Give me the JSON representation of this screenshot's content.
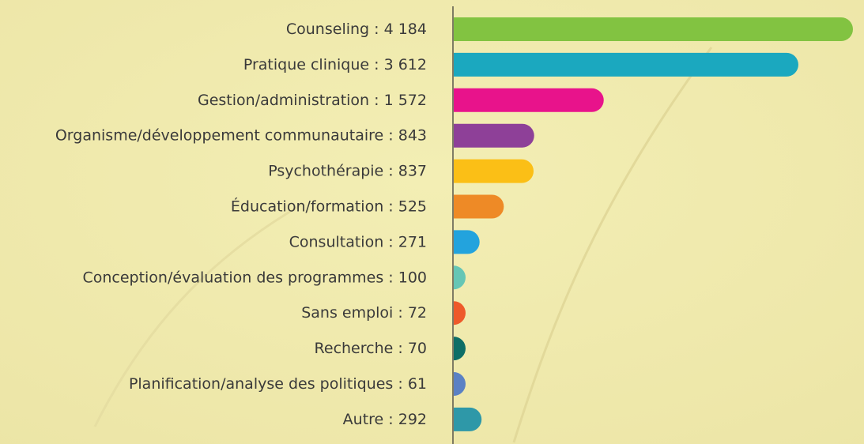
{
  "chart_data": {
    "type": "bar",
    "orientation": "horizontal",
    "separator": " : ",
    "categories": [
      "Counseling",
      "Pratique clinique",
      "Gestion/administration",
      "Organisme/développement communautaire",
      "Psychothérapie",
      "Éducation/formation",
      "Consultation",
      "Conception/évaluation des programmes",
      "Sans emploi",
      "Recherche",
      "Planification/analyse des politiques",
      "Autre"
    ],
    "values": [
      4184,
      3612,
      1572,
      843,
      837,
      525,
      271,
      100,
      72,
      70,
      61,
      292
    ],
    "value_labels": [
      "4 184",
      "3 612",
      "1 572",
      "843",
      "837",
      "525",
      "271",
      "100",
      "72",
      "70",
      "61",
      "292"
    ],
    "colors": [
      "#82c341",
      "#1ba8bf",
      "#e8138b",
      "#8e4098",
      "#fbbf16",
      "#ee8a26",
      "#23a3dd",
      "#66c6b5",
      "#ee5a2a",
      "#0e6e66",
      "#5a81c4",
      "#2e98a8"
    ]
  }
}
